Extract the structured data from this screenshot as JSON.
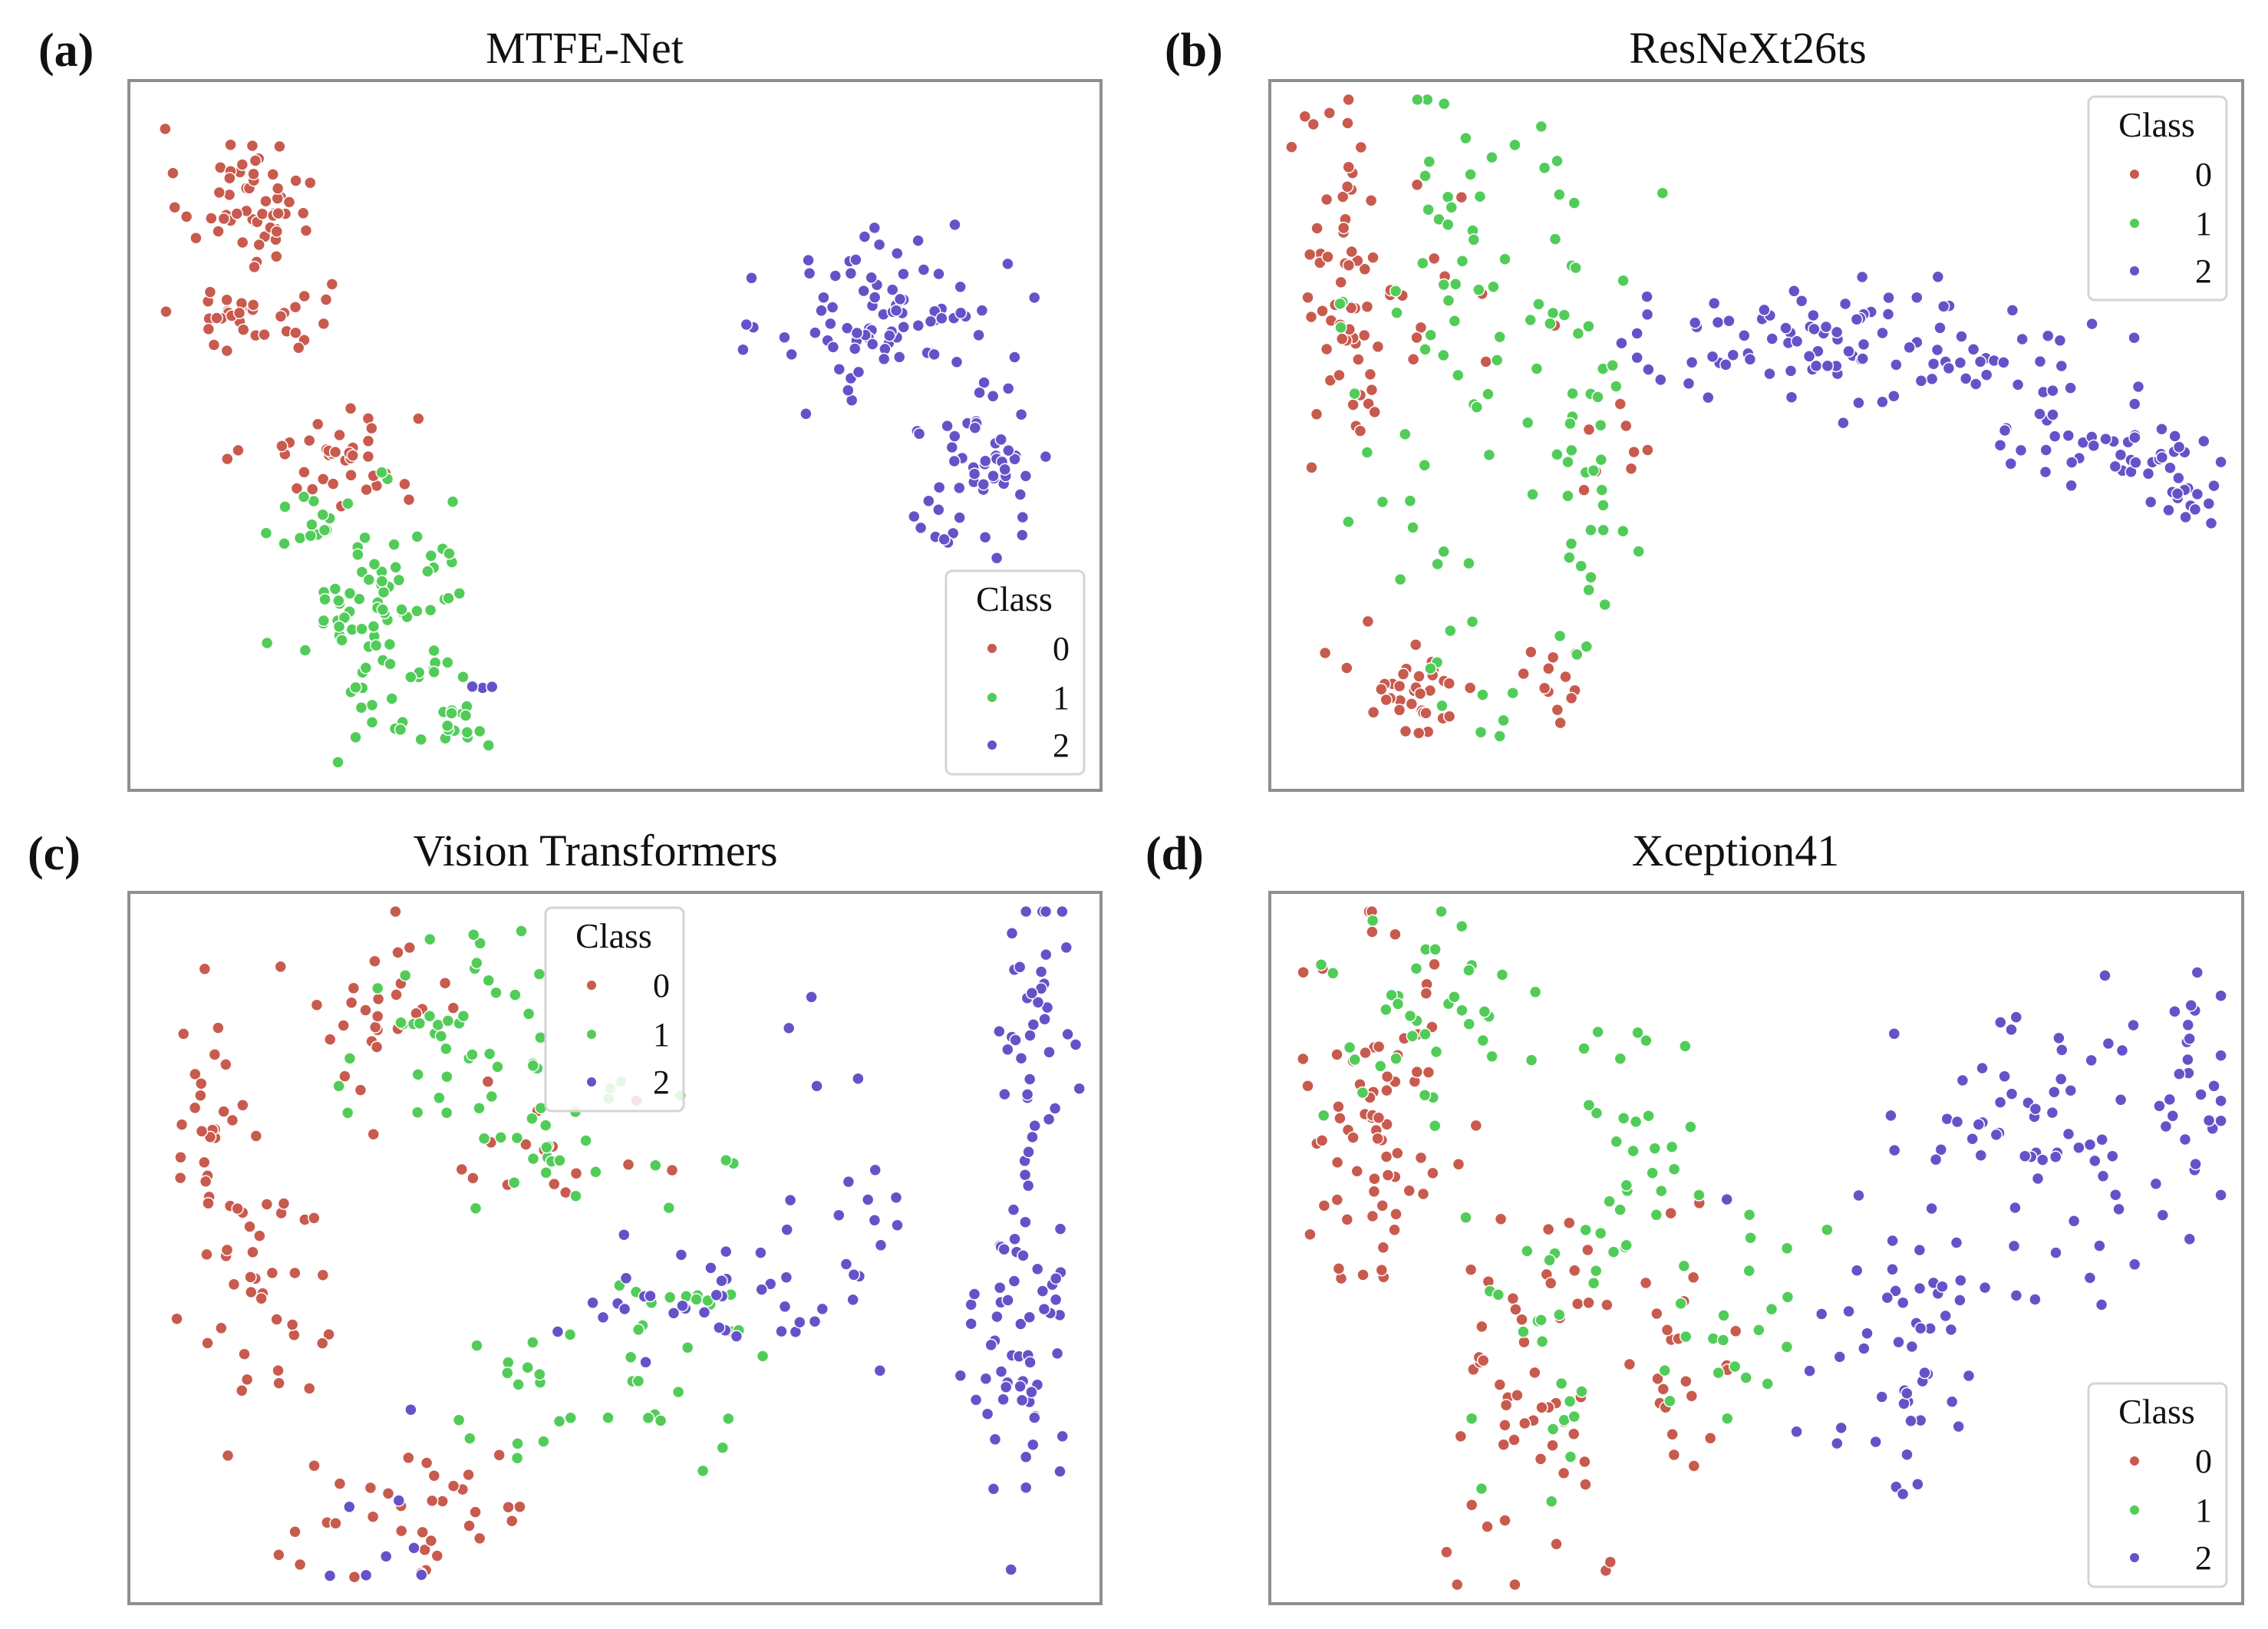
{
  "figure": {
    "colors": {
      "class_0": "#c95a4e",
      "class_1": "#52cc59",
      "class_2": "#6453c8",
      "frame": "#8f8f8f"
    }
  },
  "chart_data": [
    {
      "id": "a",
      "panel_label": "(a)",
      "title": "MTFE-Net",
      "type": "scatter",
      "xlabel": "",
      "ylabel": "",
      "xlim": [
        0,
        100
      ],
      "ylim": [
        0,
        100
      ],
      "ticks": "none",
      "grid": false,
      "legend": {
        "title": "Class",
        "entries": [
          "0",
          "1",
          "2"
        ],
        "position": "bottom-right"
      },
      "series": [
        {
          "name": "0",
          "color": "#c95a4e",
          "clusters": [
            {
              "cx": 11,
              "cy": 85,
              "sx": 3.5,
              "sy": 5,
              "n": 55
            },
            {
              "cx": 12,
              "cy": 67,
              "sx": 4,
              "sy": 3,
              "n": 35
            },
            {
              "cx": 20,
              "cy": 47,
              "sx": 4.5,
              "sy": 3.5,
              "n": 38
            }
          ]
        },
        {
          "name": "1",
          "color": "#52cc59",
          "clusters": [
            {
              "cx": 20,
              "cy": 38,
              "sx": 4,
              "sy": 3,
              "n": 18
            },
            {
              "cx": 26,
              "cy": 23,
              "sx": 4.5,
              "sy": 8,
              "n": 80
            },
            {
              "cx": 33,
              "cy": 7,
              "sx": 2.5,
              "sy": 2,
              "n": 18
            }
          ]
        },
        {
          "name": "2",
          "color": "#6453c8",
          "clusters": [
            {
              "cx": 79,
              "cy": 68,
              "sx": 6,
              "sy": 6.5,
              "n": 85
            },
            {
              "cx": 88,
              "cy": 45,
              "sx": 4,
              "sy": 6,
              "n": 55
            },
            {
              "cx": 36,
              "cy": 14,
              "sx": 1,
              "sy": 1,
              "n": 3
            }
          ]
        }
      ]
    },
    {
      "id": "b",
      "panel_label": "(b)",
      "title": "ResNeXt26ts",
      "type": "scatter",
      "xlabel": "",
      "ylabel": "",
      "xlim": [
        0,
        100
      ],
      "ylim": [
        0,
        100
      ],
      "ticks": "none",
      "grid": false,
      "legend": {
        "title": "Class",
        "entries": [
          "0",
          "1",
          "2"
        ],
        "position": "top-right"
      },
      "series": [
        {
          "name": "0",
          "color": "#c95a4e",
          "clusters": [
            {
              "cx": 7,
              "cy": 70,
              "sx": 2.5,
              "sy": 14,
              "n": 60
            },
            {
              "cx": 14,
              "cy": 14,
              "sx": 3.5,
              "sy": 4,
              "n": 35
            },
            {
              "cx": 29,
              "cy": 13,
              "sx": 1.5,
              "sy": 3,
              "n": 12
            },
            {
              "cx": 17,
              "cy": 75,
              "sx": 4,
              "sy": 10,
              "n": 12
            },
            {
              "cx": 35,
              "cy": 48,
              "sx": 2,
              "sy": 5,
              "n": 8
            }
          ]
        },
        {
          "name": "1",
          "color": "#52cc59",
          "clusters": [
            {
              "cx": 18,
              "cy": 70,
              "sx": 4,
              "sy": 18,
              "n": 40
            },
            {
              "cx": 30,
              "cy": 70,
              "sx": 3.5,
              "sy": 15,
              "n": 30
            },
            {
              "cx": 33,
              "cy": 38,
              "sx": 2.5,
              "sy": 10,
              "n": 22
            },
            {
              "cx": 10,
              "cy": 50,
              "sx": 3,
              "sy": 12,
              "n": 12
            },
            {
              "cx": 19,
              "cy": 16,
              "sx": 2.5,
              "sy": 5,
              "n": 10
            }
          ]
        },
        {
          "name": "2",
          "color": "#6453c8",
          "clusters": [
            {
              "cx": 50,
              "cy": 63,
              "sx": 8,
              "sy": 4,
              "n": 50
            },
            {
              "cx": 70,
              "cy": 63,
              "sx": 7,
              "sy": 4.5,
              "n": 50
            },
            {
              "cx": 86,
              "cy": 50,
              "sx": 5,
              "sy": 4,
              "n": 38
            },
            {
              "cx": 95,
              "cy": 43,
              "sx": 2.5,
              "sy": 3,
              "n": 25
            }
          ]
        }
      ]
    },
    {
      "id": "c",
      "panel_label": "(c)",
      "title": "Vision Transformers",
      "type": "scatter",
      "xlabel": "",
      "ylabel": "",
      "xlim": [
        0,
        100
      ],
      "ylim": [
        0,
        100
      ],
      "ticks": "none",
      "grid": false,
      "legend": {
        "title": "Class",
        "entries": [
          "0",
          "1",
          "2"
        ],
        "position": "upper-center"
      },
      "series": [
        {
          "name": "0",
          "color": "#c95a4e",
          "clusters": [
            {
              "cx": 7,
              "cy": 70,
              "sx": 2,
              "sy": 8,
              "n": 25
            },
            {
              "cx": 13,
              "cy": 45,
              "sx": 4,
              "sy": 9,
              "n": 40
            },
            {
              "cx": 25,
              "cy": 83,
              "sx": 5,
              "sy": 7,
              "n": 28
            },
            {
              "cx": 30,
              "cy": 12,
              "sx": 7,
              "sy": 5,
              "n": 35
            },
            {
              "cx": 43,
              "cy": 62,
              "sx": 5,
              "sy": 5,
              "n": 15
            }
          ]
        },
        {
          "name": "1",
          "color": "#52cc59",
          "clusters": [
            {
              "cx": 33,
              "cy": 80,
              "sx": 6,
              "sy": 9,
              "n": 45
            },
            {
              "cx": 45,
              "cy": 65,
              "sx": 6,
              "sy": 4,
              "n": 25
            },
            {
              "cx": 45,
              "cy": 28,
              "sx": 8,
              "sy": 7,
              "n": 30
            },
            {
              "cx": 57,
              "cy": 40,
              "sx": 5,
              "sy": 3,
              "n": 15
            }
          ]
        },
        {
          "name": "2",
          "color": "#6453c8",
          "clusters": [
            {
              "cx": 95,
              "cy": 80,
              "sx": 2,
              "sy": 13,
              "n": 45
            },
            {
              "cx": 92,
              "cy": 35,
              "sx": 2.5,
              "sy": 14,
              "n": 55
            },
            {
              "cx": 75,
              "cy": 60,
              "sx": 3,
              "sy": 13,
              "n": 18
            },
            {
              "cx": 60,
              "cy": 43,
              "sx": 8,
              "sy": 4,
              "n": 35
            },
            {
              "cx": 28,
              "cy": 15,
              "sx": 4,
              "sy": 8,
              "n": 8
            }
          ]
        }
      ]
    },
    {
      "id": "d",
      "panel_label": "(d)",
      "title": "Xception41",
      "type": "scatter",
      "xlabel": "",
      "ylabel": "",
      "xlim": [
        0,
        100
      ],
      "ylim": [
        0,
        100
      ],
      "ticks": "none",
      "grid": false,
      "legend": {
        "title": "Class",
        "entries": [
          "0",
          "1",
          "2"
        ],
        "position": "bottom-right"
      },
      "series": [
        {
          "name": "0",
          "color": "#c95a4e",
          "clusters": [
            {
              "cx": 10,
              "cy": 68,
              "sx": 4,
              "sy": 14,
              "n": 70
            },
            {
              "cx": 27,
              "cy": 30,
              "sx": 5,
              "sy": 15,
              "n": 55
            },
            {
              "cx": 42,
              "cy": 30,
              "sx": 3,
              "sy": 8,
              "n": 22
            }
          ]
        },
        {
          "name": "1",
          "color": "#52cc59",
          "clusters": [
            {
              "cx": 16,
              "cy": 82,
              "sx": 6,
              "sy": 9,
              "n": 40
            },
            {
              "cx": 36,
              "cy": 65,
              "sx": 4,
              "sy": 10,
              "n": 30
            },
            {
              "cx": 28,
              "cy": 36,
              "sx": 5,
              "sy": 10,
              "n": 22
            },
            {
              "cx": 50,
              "cy": 42,
              "sx": 5,
              "sy": 8,
              "n": 22
            }
          ]
        },
        {
          "name": "2",
          "color": "#6453c8",
          "clusters": [
            {
              "cx": 80,
              "cy": 65,
              "sx": 8,
              "sy": 9,
              "n": 70
            },
            {
              "cx": 95,
              "cy": 72,
              "sx": 3,
              "sy": 12,
              "n": 25
            },
            {
              "cx": 67,
              "cy": 40,
              "sx": 5,
              "sy": 6,
              "n": 30
            },
            {
              "cx": 65,
              "cy": 26,
              "sx": 4,
              "sy": 6,
              "n": 18
            }
          ]
        }
      ]
    }
  ]
}
